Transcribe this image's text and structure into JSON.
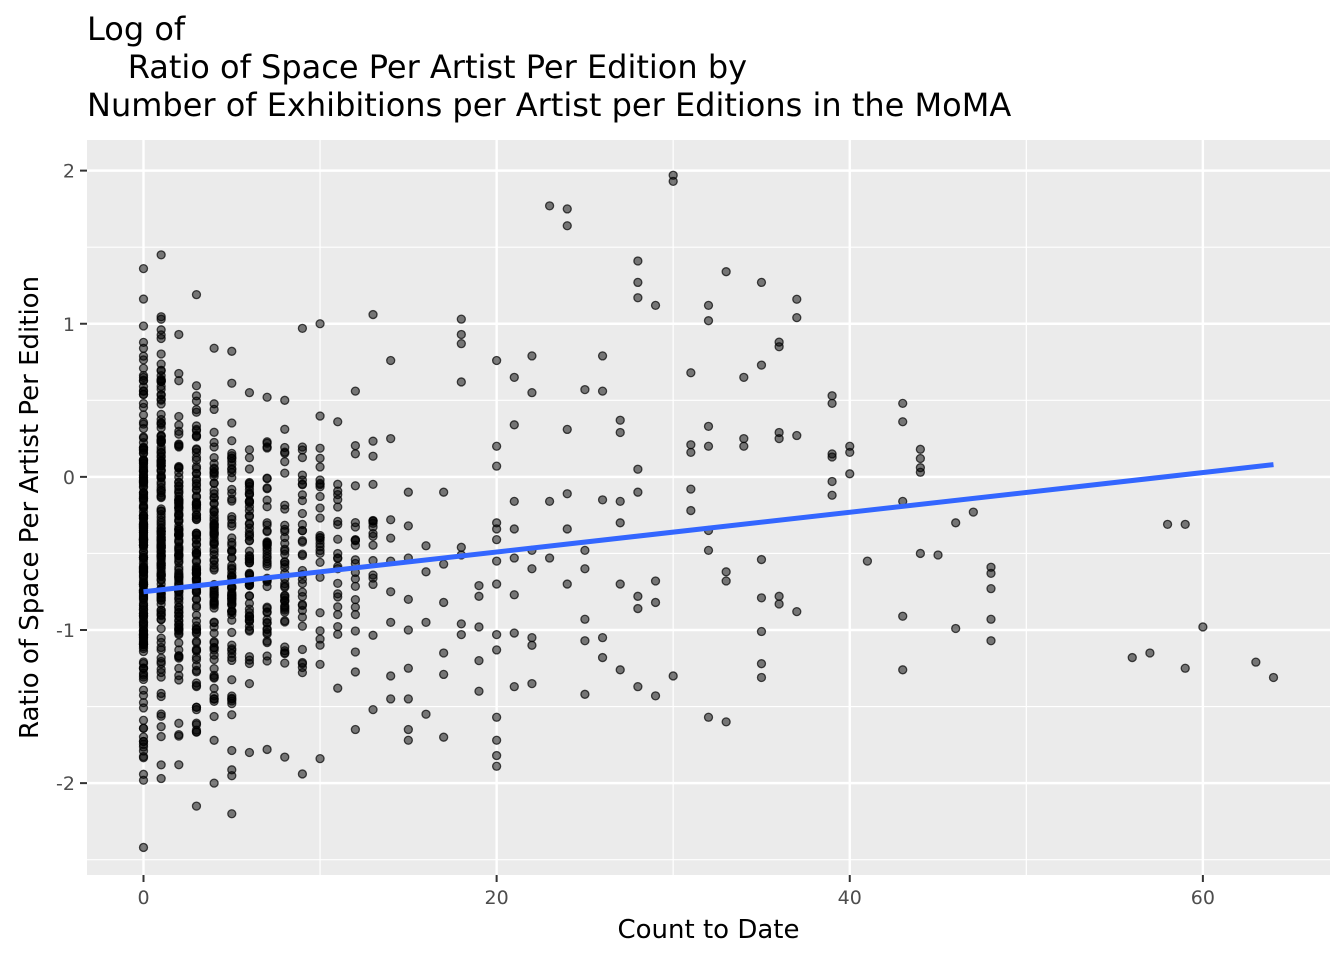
{
  "chart_data": {
    "type": "scatter",
    "title": "Log of\n    Ratio of Space Per Artist Per Edition by\nNumber of Exhibitions per Artist per Editions in the MoMA",
    "xlabel": "Count to Date",
    "ylabel": "Ratio of Space Per Artist Per Edition",
    "xlim": [
      -3.2,
      67.2
    ],
    "ylim": [
      -2.6,
      2.2
    ],
    "x_ticks": [
      0,
      20,
      40,
      60
    ],
    "x_tick_labels": [
      "0",
      "20",
      "40",
      "60"
    ],
    "y_ticks": [
      -2,
      -1,
      0,
      1,
      2
    ],
    "y_tick_labels": [
      "-2",
      "-1",
      "0",
      "1",
      "2"
    ],
    "grid": true,
    "point_color": "#000000",
    "point_opacity": 0.5,
    "panel_background": "#ebebeb",
    "trend_line": {
      "method": "lm",
      "color": "#3366ff",
      "x": [
        0,
        64
      ],
      "y": [
        -0.75,
        0.08
      ]
    },
    "dense_columns": [
      {
        "x": 0,
        "n": 220,
        "ymin": -2.42,
        "ymax": 1.36
      },
      {
        "x": 1,
        "n": 160,
        "ymin": -1.97,
        "ymax": 1.45
      },
      {
        "x": 2,
        "n": 120,
        "ymin": -1.88,
        "ymax": 0.93
      },
      {
        "x": 3,
        "n": 110,
        "ymin": -2.15,
        "ymax": 1.19
      },
      {
        "x": 4,
        "n": 90,
        "ymin": -2.0,
        "ymax": 0.84
      },
      {
        "x": 5,
        "n": 80,
        "ymin": -2.2,
        "ymax": 0.82
      },
      {
        "x": 6,
        "n": 65,
        "ymin": -1.8,
        "ymax": 0.55
      },
      {
        "x": 7,
        "n": 50,
        "ymin": -1.78,
        "ymax": 0.52
      },
      {
        "x": 8,
        "n": 45,
        "ymin": -1.83,
        "ymax": 0.5
      },
      {
        "x": 9,
        "n": 35,
        "ymin": -1.94,
        "ymax": 0.97
      },
      {
        "x": 10,
        "n": 28,
        "ymin": -1.84,
        "ymax": 1.0
      },
      {
        "x": 11,
        "n": 22,
        "ymin": -1.38,
        "ymax": 0.36
      },
      {
        "x": 12,
        "n": 22,
        "ymin": -1.65,
        "ymax": 0.56
      },
      {
        "x": 13,
        "n": 18,
        "ymin": -1.52,
        "ymax": 1.06
      }
    ],
    "points": [
      [
        14,
        0.76
      ],
      [
        14,
        0.25
      ],
      [
        14,
        -0.28
      ],
      [
        14,
        -0.4
      ],
      [
        14,
        -0.55
      ],
      [
        14,
        -0.75
      ],
      [
        14,
        -0.95
      ],
      [
        14,
        -1.3
      ],
      [
        14,
        -1.45
      ],
      [
        15,
        -0.1
      ],
      [
        15,
        -0.32
      ],
      [
        15,
        -0.53
      ],
      [
        15,
        -0.8
      ],
      [
        15,
        -1.0
      ],
      [
        15,
        -1.25
      ],
      [
        15,
        -1.45
      ],
      [
        15,
        -1.65
      ],
      [
        15,
        -1.72
      ],
      [
        16,
        -0.45
      ],
      [
        16,
        -0.62
      ],
      [
        16,
        -0.95
      ],
      [
        16,
        -1.55
      ],
      [
        17,
        -0.1
      ],
      [
        17,
        -0.57
      ],
      [
        17,
        -0.82
      ],
      [
        17,
        -1.15
      ],
      [
        17,
        -1.29
      ],
      [
        17,
        -1.7
      ],
      [
        18,
        1.03
      ],
      [
        18,
        0.93
      ],
      [
        18,
        0.87
      ],
      [
        18,
        0.62
      ],
      [
        18,
        -0.46
      ],
      [
        18,
        -0.51
      ],
      [
        18,
        -0.96
      ],
      [
        18,
        -1.03
      ],
      [
        19,
        -0.71
      ],
      [
        19,
        -0.78
      ],
      [
        19,
        -0.98
      ],
      [
        19,
        -1.2
      ],
      [
        19,
        -1.4
      ],
      [
        20,
        0.76
      ],
      [
        20,
        0.2
      ],
      [
        20,
        0.07
      ],
      [
        20,
        -0.3
      ],
      [
        20,
        -0.34
      ],
      [
        20,
        -0.41
      ],
      [
        20,
        -0.55
      ],
      [
        20,
        -0.7
      ],
      [
        20,
        -1.03
      ],
      [
        20,
        -1.13
      ],
      [
        20,
        -1.57
      ],
      [
        20,
        -1.72
      ],
      [
        20,
        -1.82
      ],
      [
        20,
        -1.89
      ],
      [
        21,
        0.65
      ],
      [
        21,
        0.34
      ],
      [
        21,
        -0.16
      ],
      [
        21,
        -0.34
      ],
      [
        21,
        -0.53
      ],
      [
        21,
        -0.77
      ],
      [
        21,
        -1.02
      ],
      [
        21,
        -1.37
      ],
      [
        22,
        0.79
      ],
      [
        22,
        0.55
      ],
      [
        22,
        -0.48
      ],
      [
        22,
        -0.6
      ],
      [
        22,
        -1.05
      ],
      [
        22,
        -1.1
      ],
      [
        22,
        -1.35
      ],
      [
        23,
        1.77
      ],
      [
        23,
        -0.16
      ],
      [
        23,
        -0.53
      ],
      [
        24,
        1.75
      ],
      [
        24,
        1.64
      ],
      [
        24,
        0.31
      ],
      [
        24,
        -0.11
      ],
      [
        24,
        -0.34
      ],
      [
        24,
        -0.7
      ],
      [
        25,
        0.57
      ],
      [
        25,
        -0.48
      ],
      [
        25,
        -0.6
      ],
      [
        25,
        -0.93
      ],
      [
        25,
        -1.07
      ],
      [
        25,
        -1.42
      ],
      [
        26,
        0.79
      ],
      [
        26,
        0.56
      ],
      [
        26,
        -0.15
      ],
      [
        26,
        -1.05
      ],
      [
        26,
        -1.18
      ],
      [
        27,
        0.37
      ],
      [
        27,
        0.29
      ],
      [
        27,
        -0.16
      ],
      [
        27,
        -0.3
      ],
      [
        27,
        -0.7
      ],
      [
        27,
        -1.26
      ],
      [
        28,
        1.41
      ],
      [
        28,
        1.27
      ],
      [
        28,
        1.17
      ],
      [
        28,
        0.05
      ],
      [
        28,
        -0.1
      ],
      [
        28,
        -0.78
      ],
      [
        28,
        -0.86
      ],
      [
        28,
        -1.37
      ],
      [
        29,
        1.12
      ],
      [
        29,
        -0.68
      ],
      [
        29,
        -0.82
      ],
      [
        29,
        -1.43
      ],
      [
        30,
        1.97
      ],
      [
        30,
        1.93
      ],
      [
        30,
        -1.3
      ],
      [
        31,
        0.68
      ],
      [
        31,
        0.21
      ],
      [
        31,
        0.16
      ],
      [
        31,
        -0.08
      ],
      [
        31,
        -0.22
      ],
      [
        32,
        1.12
      ],
      [
        32,
        1.02
      ],
      [
        32,
        0.33
      ],
      [
        32,
        0.2
      ],
      [
        32,
        -0.35
      ],
      [
        32,
        -0.48
      ],
      [
        32,
        -1.57
      ],
      [
        33,
        1.34
      ],
      [
        33,
        -0.62
      ],
      [
        33,
        -0.68
      ],
      [
        33,
        -1.6
      ],
      [
        34,
        0.65
      ],
      [
        34,
        0.25
      ],
      [
        34,
        0.2
      ],
      [
        35,
        1.27
      ],
      [
        35,
        0.73
      ],
      [
        35,
        -0.54
      ],
      [
        35,
        -0.79
      ],
      [
        35,
        -1.01
      ],
      [
        35,
        -1.22
      ],
      [
        35,
        -1.31
      ],
      [
        36,
        0.88
      ],
      [
        36,
        0.85
      ],
      [
        36,
        0.29
      ],
      [
        36,
        0.25
      ],
      [
        36,
        -0.78
      ],
      [
        36,
        -0.83
      ],
      [
        37,
        1.16
      ],
      [
        37,
        1.04
      ],
      [
        37,
        0.27
      ],
      [
        37,
        -0.88
      ],
      [
        39,
        0.53
      ],
      [
        39,
        0.48
      ],
      [
        39,
        0.15
      ],
      [
        39,
        0.13
      ],
      [
        39,
        -0.03
      ],
      [
        39,
        -0.12
      ],
      [
        40,
        0.2
      ],
      [
        40,
        0.16
      ],
      [
        40,
        0.02
      ],
      [
        41,
        -0.55
      ],
      [
        43,
        0.48
      ],
      [
        43,
        0.36
      ],
      [
        43,
        -0.16
      ],
      [
        43,
        -0.91
      ],
      [
        43,
        -1.26
      ],
      [
        44,
        0.18
      ],
      [
        44,
        0.12
      ],
      [
        44,
        0.06
      ],
      [
        44,
        0.03
      ],
      [
        44,
        -0.5
      ],
      [
        45,
        -0.51
      ],
      [
        46,
        -0.3
      ],
      [
        46,
        -0.99
      ],
      [
        47,
        -0.23
      ],
      [
        48,
        -0.59
      ],
      [
        48,
        -0.63
      ],
      [
        48,
        -0.73
      ],
      [
        48,
        -0.93
      ],
      [
        48,
        -1.07
      ],
      [
        56,
        -1.18
      ],
      [
        57,
        -1.15
      ],
      [
        58,
        -0.31
      ],
      [
        59,
        -0.31
      ],
      [
        59,
        -1.25
      ],
      [
        60,
        -0.98
      ],
      [
        63,
        -1.21
      ],
      [
        64,
        -1.31
      ]
    ]
  }
}
